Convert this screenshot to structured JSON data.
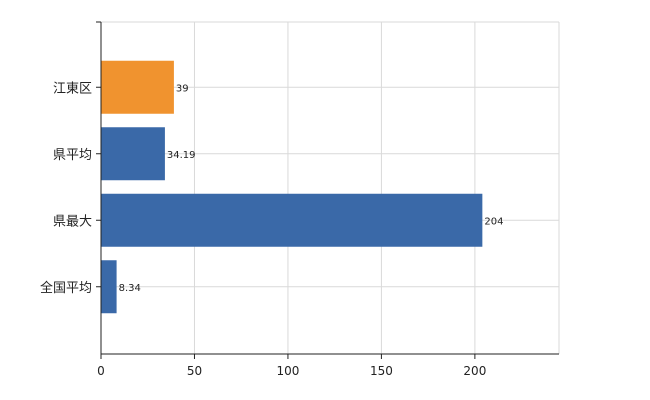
{
  "chart_data": {
    "type": "bar",
    "orientation": "horizontal",
    "title": "",
    "xlabel": "",
    "ylabel": "",
    "categories": [
      "江東区",
      "県平均",
      "県最大",
      "全国平均"
    ],
    "values": [
      39,
      34.19,
      204,
      8.34
    ],
    "value_labels": [
      "39",
      "34.19",
      "204",
      "8.34"
    ],
    "bar_colors": [
      "#F0932F",
      "#3A69A8",
      "#3A69A8",
      "#3A69A8"
    ],
    "xlim": [
      0,
      245
    ],
    "xticks": [
      0,
      50,
      100,
      150,
      200
    ],
    "xtick_labels": [
      "0",
      "50",
      "100",
      "150",
      "200"
    ],
    "grid": true,
    "legend": "none"
  }
}
